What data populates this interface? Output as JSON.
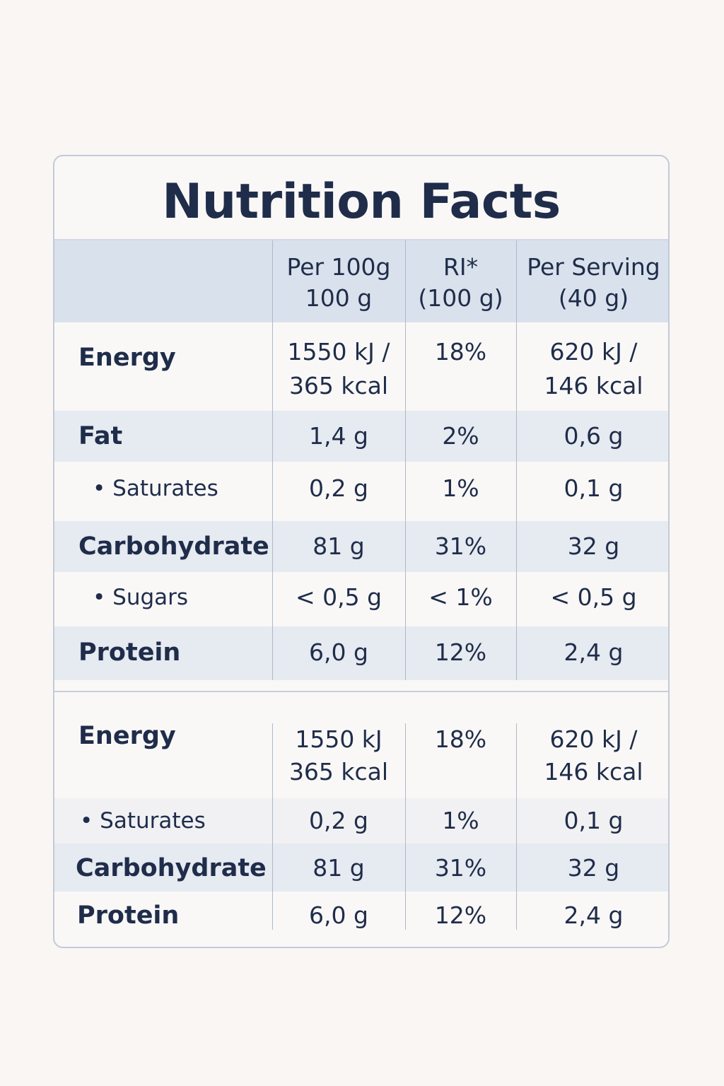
{
  "title": "Nutrition Facts",
  "header": {
    "col1": [
      "Per 100g",
      "100 g"
    ],
    "col2": [
      "RI*",
      "(100 g)"
    ],
    "col3": [
      "Per Serving",
      "(40 g)"
    ]
  },
  "table1": [
    {
      "label": "Energy",
      "per100": [
        "1550 kJ /",
        "365 kcal"
      ],
      "ri": "18%",
      "serving": [
        "620 kJ /",
        "146 kcal"
      ]
    },
    {
      "label": "Fat",
      "per100": [
        "1,4 g"
      ],
      "ri": "2%",
      "serving": [
        "0,6 g"
      ]
    },
    {
      "label": "• Saturates",
      "per100": [
        "0,2 g"
      ],
      "ri": "1%",
      "serving": [
        "0,1 g"
      ]
    },
    {
      "label": "Carbohydrate",
      "per100": [
        "81 g"
      ],
      "ri": "31%",
      "serving": [
        "32 g"
      ]
    },
    {
      "label": "• Sugars",
      "per100": [
        "< 0,5 g"
      ],
      "ri": "< 1%",
      "serving": [
        "< 0,5 g"
      ]
    },
    {
      "label": "Protein",
      "per100": [
        "6,0 g"
      ],
      "ri": "12%",
      "serving": [
        "2,4 g"
      ]
    }
  ],
  "table2": [
    {
      "label": "Energy",
      "per100": [
        "1550 kJ",
        "365 kcal"
      ],
      "ri": "18%",
      "serving": [
        "620 kJ /",
        "146 kcal"
      ]
    },
    {
      "label": "• Saturates",
      "per100": [
        "0,2 g"
      ],
      "ri": "1%",
      "serving": [
        "0,1 g"
      ]
    },
    {
      "label": "Carbohydrate",
      "per100": [
        "81 g"
      ],
      "ri": "31%",
      "serving": [
        "32 g"
      ]
    },
    {
      "label": "Protein",
      "per100": [
        "6,0 g"
      ],
      "ri": "12%",
      "serving": [
        "2,4 g"
      ]
    }
  ]
}
